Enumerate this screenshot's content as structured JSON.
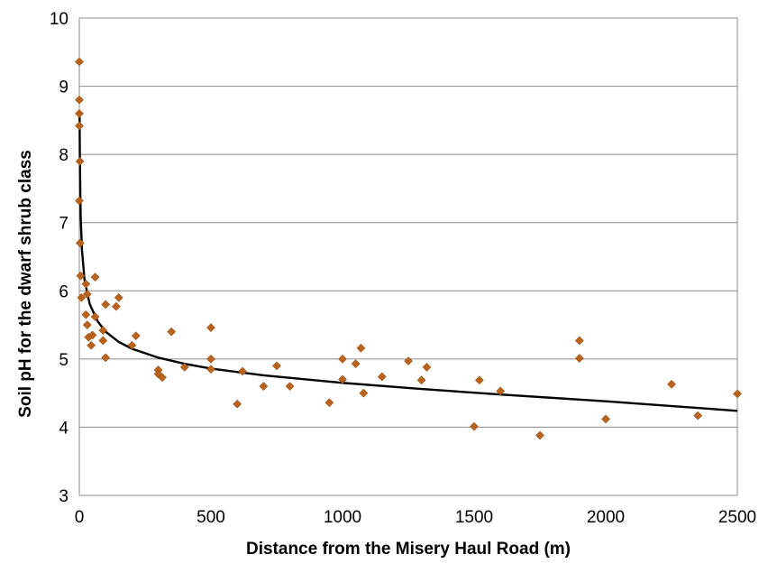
{
  "chart_data": {
    "type": "scatter",
    "title": "",
    "xlabel": "Distance from the Misery Haul Road (m)",
    "ylabel": "Soil pH for the dwarf shrub class",
    "xlim": [
      0,
      2500
    ],
    "ylim": [
      3,
      10
    ],
    "x_ticks": [
      0,
      500,
      1000,
      1500,
      2000,
      2500
    ],
    "y_ticks": [
      3,
      4,
      5,
      6,
      7,
      8,
      9,
      10
    ],
    "x_tick_labels": [
      "0",
      "500",
      "1000",
      "1500",
      "2000",
      "2500"
    ],
    "y_tick_labels": [
      "3",
      "4",
      "5",
      "6",
      "7",
      "8",
      "9",
      "10"
    ],
    "grid": {
      "horizontal": true,
      "vertical": false
    },
    "marker_color": "#B8621B",
    "trendline_color": "#000000",
    "points": [
      {
        "x": 0,
        "y": 9.36
      },
      {
        "x": 0,
        "y": 8.8
      },
      {
        "x": 0,
        "y": 8.6
      },
      {
        "x": 0,
        "y": 8.42
      },
      {
        "x": 2,
        "y": 7.9
      },
      {
        "x": 0,
        "y": 7.32
      },
      {
        "x": 3,
        "y": 6.7
      },
      {
        "x": 5,
        "y": 6.22
      },
      {
        "x": 8,
        "y": 5.9
      },
      {
        "x": 25,
        "y": 6.1
      },
      {
        "x": 30,
        "y": 5.95
      },
      {
        "x": 60,
        "y": 6.2
      },
      {
        "x": 25,
        "y": 5.65
      },
      {
        "x": 30,
        "y": 5.5
      },
      {
        "x": 60,
        "y": 5.62
      },
      {
        "x": 35,
        "y": 5.32
      },
      {
        "x": 50,
        "y": 5.35
      },
      {
        "x": 45,
        "y": 5.2
      },
      {
        "x": 90,
        "y": 5.42
      },
      {
        "x": 90,
        "y": 5.27
      },
      {
        "x": 100,
        "y": 5.8
      },
      {
        "x": 100,
        "y": 5.02
      },
      {
        "x": 140,
        "y": 5.77
      },
      {
        "x": 150,
        "y": 5.9
      },
      {
        "x": 200,
        "y": 5.2
      },
      {
        "x": 215,
        "y": 5.34
      },
      {
        "x": 300,
        "y": 4.84
      },
      {
        "x": 300,
        "y": 4.78
      },
      {
        "x": 315,
        "y": 4.73
      },
      {
        "x": 350,
        "y": 5.4
      },
      {
        "x": 400,
        "y": 4.88
      },
      {
        "x": 500,
        "y": 5.46
      },
      {
        "x": 500,
        "y": 5.0
      },
      {
        "x": 500,
        "y": 4.85
      },
      {
        "x": 600,
        "y": 4.34
      },
      {
        "x": 620,
        "y": 4.82
      },
      {
        "x": 700,
        "y": 4.6
      },
      {
        "x": 750,
        "y": 4.9
      },
      {
        "x": 800,
        "y": 4.6
      },
      {
        "x": 950,
        "y": 4.36
      },
      {
        "x": 1000,
        "y": 5.0
      },
      {
        "x": 1000,
        "y": 4.7
      },
      {
        "x": 1050,
        "y": 4.93
      },
      {
        "x": 1070,
        "y": 5.16
      },
      {
        "x": 1080,
        "y": 4.5
      },
      {
        "x": 1150,
        "y": 4.74
      },
      {
        "x": 1250,
        "y": 4.97
      },
      {
        "x": 1300,
        "y": 4.69
      },
      {
        "x": 1320,
        "y": 4.88
      },
      {
        "x": 1500,
        "y": 4.01
      },
      {
        "x": 1520,
        "y": 4.69
      },
      {
        "x": 1600,
        "y": 4.53
      },
      {
        "x": 1750,
        "y": 3.88
      },
      {
        "x": 1900,
        "y": 5.27
      },
      {
        "x": 1900,
        "y": 5.01
      },
      {
        "x": 2000,
        "y": 4.12
      },
      {
        "x": 2250,
        "y": 4.63
      },
      {
        "x": 2350,
        "y": 4.17
      },
      {
        "x": 2500,
        "y": 4.49
      }
    ],
    "trendline": {
      "type": "logarithmic",
      "points": [
        {
          "x": 1,
          "y": 8.6
        },
        {
          "x": 2,
          "y": 7.95
        },
        {
          "x": 5,
          "y": 7.1
        },
        {
          "x": 10,
          "y": 6.6
        },
        {
          "x": 20,
          "y": 6.15
        },
        {
          "x": 40,
          "y": 5.8
        },
        {
          "x": 70,
          "y": 5.55
        },
        {
          "x": 100,
          "y": 5.4
        },
        {
          "x": 150,
          "y": 5.25
        },
        {
          "x": 200,
          "y": 5.15
        },
        {
          "x": 300,
          "y": 5.02
        },
        {
          "x": 400,
          "y": 4.93
        },
        {
          "x": 500,
          "y": 4.86
        },
        {
          "x": 700,
          "y": 4.76
        },
        {
          "x": 1000,
          "y": 4.65
        },
        {
          "x": 1300,
          "y": 4.56
        },
        {
          "x": 1600,
          "y": 4.48
        },
        {
          "x": 2000,
          "y": 4.38
        },
        {
          "x": 2500,
          "y": 4.24
        }
      ]
    }
  }
}
